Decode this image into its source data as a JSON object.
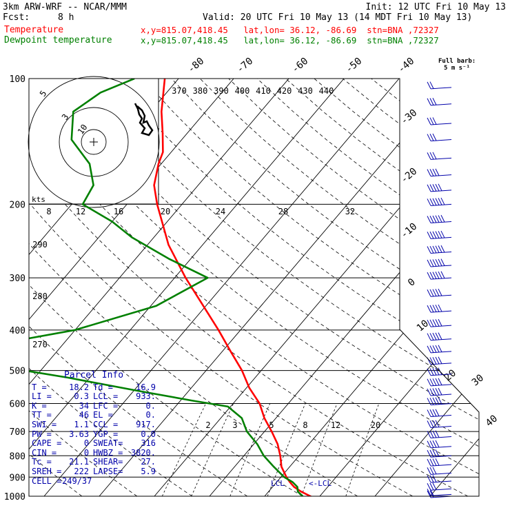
{
  "header": {
    "model": "3km ARW-WRF -- NCAR/MMM",
    "init": "Init: 12 UTC Fri 10 May 13",
    "fcst_label": "Fcst:",
    "fcst_value": "8 h",
    "valid": "Valid: 20 UTC Fri 10 May 13 (14 MDT Fri 10 May 13)",
    "temp_label": "Temperature",
    "temp_loc": "x,y=815.07,418.45   lat,lon= 36.12, -86.69  stn=BNA ,72327",
    "dew_label": "Dewpoint temperature",
    "dew_loc": "x,y=815.07,418.45   lat,lon= 36.12, -86.69  stn=BNA ,72327",
    "barb_note_1": "Full barb:",
    "barb_note_2": "5 m s⁻¹"
  },
  "colors": {
    "temperature": "#ff0000",
    "dewpoint": "#008000",
    "panel": "#0000aa",
    "barb": "#0000aa"
  },
  "chart_data": {
    "type": "line",
    "pressure_levels": [
      100,
      200,
      300,
      400,
      500,
      600,
      700,
      800,
      900,
      1000
    ],
    "plim": [
      100,
      1000
    ],
    "isotherm_labels": [
      "-80",
      "-70",
      "-60",
      "-50",
      "-40",
      "-30",
      "-20",
      "-10",
      "0",
      "10",
      "20",
      "30",
      "40"
    ],
    "series": [
      {
        "name": "Temperature",
        "points": [
          [
            1010,
            19.2
          ],
          [
            1000,
            18.3
          ],
          [
            975,
            15.9
          ],
          [
            950,
            13.9
          ],
          [
            925,
            12.4
          ],
          [
            900,
            11.0
          ],
          [
            850,
            8.5
          ],
          [
            800,
            6.6
          ],
          [
            750,
            4.3
          ],
          [
            700,
            1.3
          ],
          [
            650,
            -2.1
          ],
          [
            600,
            -5.2
          ],
          [
            550,
            -9.5
          ],
          [
            500,
            -13.5
          ],
          [
            450,
            -18.5
          ],
          [
            400,
            -24.0
          ],
          [
            350,
            -30.5
          ],
          [
            300,
            -38.0
          ],
          [
            250,
            -46.2
          ],
          [
            200,
            -54.5
          ],
          [
            180,
            -58.0
          ],
          [
            160,
            -60.5
          ],
          [
            150,
            -61.5
          ],
          [
            135,
            -64.5
          ],
          [
            120,
            -68.0
          ],
          [
            100,
            -72.5
          ]
        ]
      },
      {
        "name": "Dewpoint temperature",
        "points": [
          [
            1000,
            16.9
          ],
          [
            975,
            15.3
          ],
          [
            950,
            14.5
          ],
          [
            925,
            12.9
          ],
          [
            900,
            10.6
          ],
          [
            850,
            7.1
          ],
          [
            800,
            3.6
          ],
          [
            750,
            0.6
          ],
          [
            700,
            -3.2
          ],
          [
            650,
            -6.2
          ],
          [
            610,
            -10.5
          ],
          [
            590,
            -18.0
          ],
          [
            560,
            -29.0
          ],
          [
            520,
            -44.0
          ],
          [
            470,
            -67.0
          ],
          [
            450,
            -68.0
          ],
          [
            400,
            -50.0
          ],
          [
            350,
            -39.0
          ],
          [
            300,
            -34.0
          ],
          [
            270,
            -44.0
          ],
          [
            240,
            -54.0
          ],
          [
            220,
            -60.0
          ],
          [
            200,
            -68.0
          ],
          [
            180,
            -69.0
          ],
          [
            160,
            -73.0
          ],
          [
            140,
            -80.0
          ],
          [
            120,
            -84.0
          ],
          [
            108,
            -82.0
          ],
          [
            100,
            -78.0
          ]
        ]
      }
    ],
    "dry_adiabat_labels": [
      "370",
      "380",
      "390",
      "400",
      "410",
      "420",
      "430",
      "440"
    ],
    "mixing_ratio_labels": [
      "2",
      "3",
      "5",
      "8",
      "12",
      "20"
    ],
    "mixing_ratio_values": [
      2,
      3,
      5,
      8,
      12,
      20
    ],
    "equiv_pot_labels": [
      "290",
      "280",
      "270"
    ],
    "hodograph": {
      "units_label": "kts",
      "ring_labels": [
        "5",
        "3",
        "10"
      ],
      "speed_labels": [
        "8",
        "12",
        "16",
        "20",
        "24",
        "28",
        "32"
      ]
    },
    "wind_levels": [
      105,
      115,
      128,
      140,
      155,
      170,
      185,
      200,
      220,
      240,
      260,
      280,
      300,
      330,
      360,
      390,
      420,
      450,
      480,
      510,
      540,
      570,
      600,
      640,
      680,
      720,
      760,
      800,
      840,
      880,
      920,
      960,
      990,
      1000
    ],
    "wind_barb_levels": [
      10,
      15,
      15,
      15,
      15,
      20,
      25,
      30,
      30,
      30,
      30,
      30,
      30,
      25,
      25,
      25,
      25,
      25,
      25,
      25,
      25,
      25,
      25,
      20,
      20,
      20,
      20,
      20,
      20,
      15,
      15,
      15,
      10,
      10
    ],
    "lcl_label": "LCL",
    "lfc_label": "<-LCL"
  },
  "parcel": {
    "title": "Parcel Info",
    "rows": [
      [
        {
          "k": "T",
          "v": "18.2"
        },
        {
          "k": "Td",
          "v": "16.9"
        }
      ],
      [
        {
          "k": "LI",
          "v": "0.3"
        },
        {
          "k": "LCL",
          "v": "933."
        }
      ],
      [
        {
          "k": "K",
          "v": "34"
        },
        {
          "k": "LFC",
          "v": "0."
        }
      ],
      [
        {
          "k": "TT",
          "v": "46"
        },
        {
          "k": "EL",
          "v": "0."
        }
      ],
      [
        {
          "k": "SWI",
          "v": "1.1"
        },
        {
          "k": "CCL",
          "v": "917."
        }
      ],
      [
        {
          "k": "PW",
          "v": "3.63"
        },
        {
          "k": "YGP",
          "v": "0.0"
        }
      ],
      [
        {
          "k": "CAPE",
          "v": "0"
        },
        {
          "k": "SWEAT",
          "v": "316"
        }
      ],
      [
        {
          "k": "CIN",
          "v": "0"
        },
        {
          "k": "HWBZ",
          "v": "3820."
        }
      ],
      [
        {
          "k": "Tc",
          "v": "21.1"
        },
        {
          "k": "SHEAR",
          "v": "27."
        }
      ],
      [
        {
          "k": "SREH",
          "v": "222"
        },
        {
          "k": "LAPSE",
          "v": "5.9"
        }
      ],
      [
        {
          "k": "CELL",
          "v": "249/37"
        }
      ]
    ]
  }
}
